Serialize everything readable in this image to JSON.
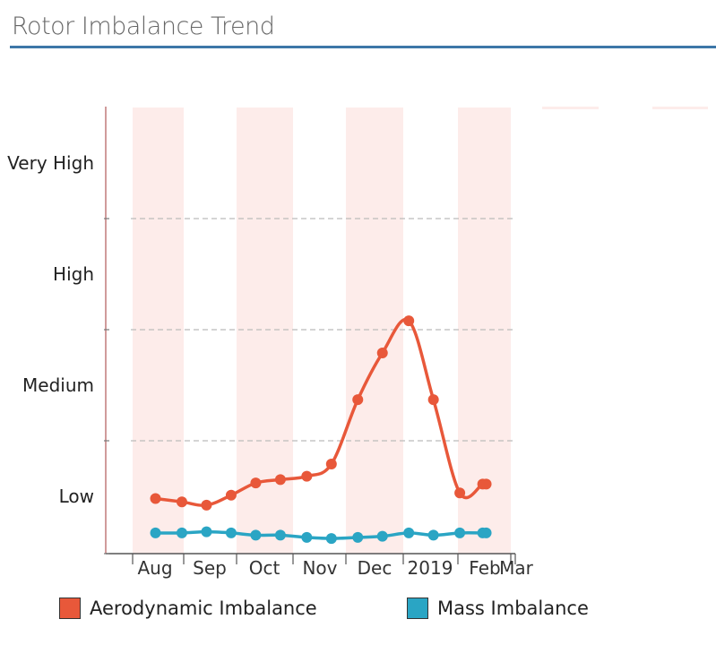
{
  "title": "Rotor Imbalance Trend",
  "chart_data": {
    "type": "line",
    "title": "Rotor Imbalance Trend",
    "ylim": [
      0,
      4
    ],
    "y_ticks": [
      {
        "label": "Low",
        "value": 0.5
      },
      {
        "label": "Medium",
        "value": 1.5
      },
      {
        "label": "High",
        "value": 2.5
      },
      {
        "label": "Very High",
        "value": 3.5
      }
    ],
    "x_ticks": [
      "Aug",
      "Sep",
      "Oct",
      "Nov",
      "Dec",
      "2019",
      "Feb",
      "Mar"
    ],
    "grid": "horizontal dashed",
    "legend_position": "bottom",
    "x": [
      "2018-08-10",
      "2018-08-25",
      "2018-09-08",
      "2018-09-22",
      "2018-10-06",
      "2018-10-20",
      "2018-11-04",
      "2018-11-18",
      "2018-12-03",
      "2018-12-17",
      "2019-01-01",
      "2019-01-15",
      "2019-01-30",
      "2019-02-12",
      "2019-02-14"
    ],
    "series": [
      {
        "name": "Aerodynamic Imbalance",
        "color": "#e8583a",
        "values": [
          0.48,
          0.45,
          0.42,
          0.51,
          0.62,
          0.65,
          0.68,
          0.79,
          1.37,
          1.79,
          2.08,
          1.37,
          0.53,
          0.61,
          0.61
        ]
      },
      {
        "name": "Mass Imbalance",
        "color": "#2aa5c4",
        "values": [
          0.17,
          0.17,
          0.18,
          0.17,
          0.15,
          0.15,
          0.13,
          0.12,
          0.13,
          0.14,
          0.17,
          0.15,
          0.17,
          0.17,
          0.17
        ]
      }
    ]
  },
  "legend": {
    "aero_label": "Aerodynamic Imbalance",
    "mass_label": "Mass Imbalance",
    "aero_color": "#e8583a",
    "mass_color": "#2aa5c4"
  }
}
